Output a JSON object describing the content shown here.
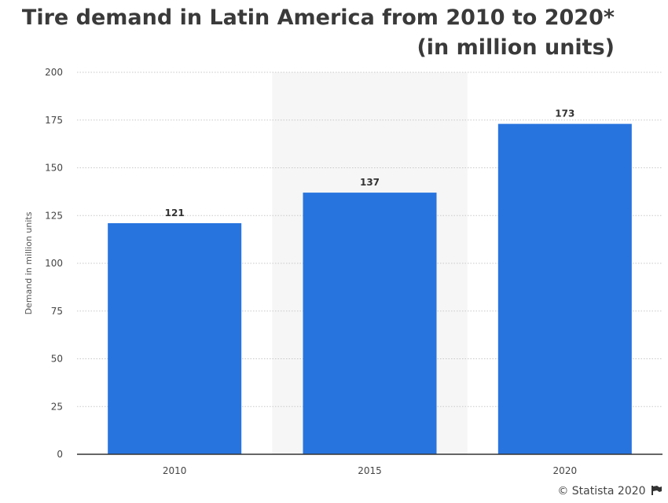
{
  "title_line1": "Tire demand in Latin America from 2010 to 2020*",
  "title_line2": "(in million units)",
  "credit": "© Statista 2020",
  "chart_data": {
    "type": "bar",
    "categories": [
      "2010",
      "2015",
      "2020"
    ],
    "values": [
      121,
      137,
      173
    ],
    "title": "Tire demand in Latin America from 2010 to 2020* (in million units)",
    "xlabel": "",
    "ylabel": "Demand in million units",
    "ylim": [
      0,
      200
    ],
    "yticks": [
      0,
      25,
      50,
      75,
      100,
      125,
      150,
      175,
      200
    ],
    "grid": true,
    "bar_color": "#2874df",
    "highlight_band_color": "#f6f6f6",
    "highlight_category": "2015"
  }
}
